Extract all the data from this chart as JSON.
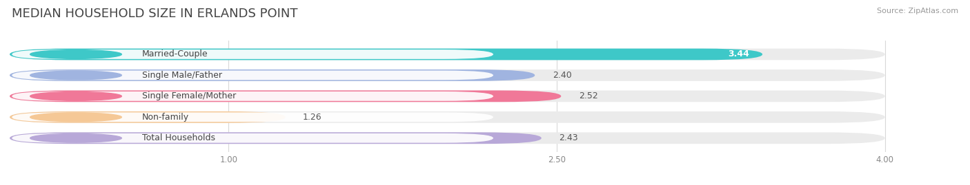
{
  "title": "MEDIAN HOUSEHOLD SIZE IN ERLANDS POINT",
  "source": "Source: ZipAtlas.com",
  "categories": [
    "Married-Couple",
    "Single Male/Father",
    "Single Female/Mother",
    "Non-family",
    "Total Households"
  ],
  "values": [
    3.44,
    2.4,
    2.52,
    1.26,
    2.43
  ],
  "bar_colors": [
    "#3ec8c8",
    "#a0b4e0",
    "#f07898",
    "#f5c896",
    "#b8a8d8"
  ],
  "dot_colors": [
    "#3ec8c8",
    "#a0b4e0",
    "#f07898",
    "#f5c896",
    "#b8a8d8"
  ],
  "value_inside": [
    true,
    false,
    false,
    false,
    false
  ],
  "xlim_min": 0.0,
  "xlim_max": 4.3,
  "xaxis_min": 0.0,
  "xaxis_max": 4.0,
  "xticks": [
    1.0,
    2.5,
    4.0
  ],
  "xtick_labels": [
    "1.00",
    "2.50",
    "4.00"
  ],
  "background_color": "#ffffff",
  "bar_track_color": "#ebebeb",
  "title_fontsize": 13,
  "source_fontsize": 8,
  "label_fontsize": 9,
  "value_fontsize": 9,
  "figsize": [
    14.06,
    2.69
  ],
  "dpi": 100
}
